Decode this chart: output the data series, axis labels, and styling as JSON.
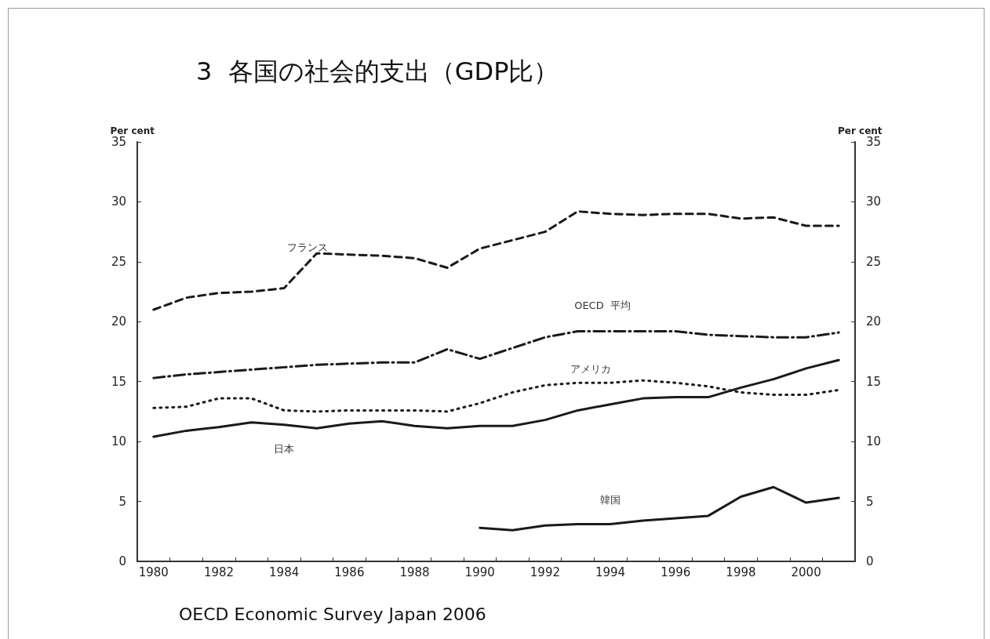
{
  "chart_data": {
    "type": "line",
    "title": "3  各国の社会的支出（GDP比）",
    "categories": [
      "1980",
      null,
      "1982",
      null,
      "1984",
      null,
      "1986",
      null,
      "1988",
      null,
      "1990",
      null,
      "1992",
      null,
      "1994",
      null,
      "1996",
      null,
      "1998",
      null,
      "2000",
      null
    ],
    "ylabel": "Per cent",
    "y2label": "Per cent",
    "ylim": [
      0,
      35
    ],
    "yticks": [
      0,
      5,
      10,
      15,
      20,
      25,
      30,
      35
    ],
    "y2lim": [
      0,
      35
    ],
    "y2ticks": [
      0,
      5,
      10,
      15,
      20,
      25,
      30,
      35
    ],
    "series": [
      {
        "name": "フランス",
        "color": "#1a1a1a",
        "line_style": "dashed",
        "values": [
          21.0,
          22.0,
          22.4,
          22.5,
          22.8,
          25.7,
          25.6,
          25.5,
          25.3,
          24.5,
          26.1,
          26.8,
          27.5,
          29.2,
          29.0,
          28.9,
          29.0,
          29.0,
          28.6,
          28.7,
          28.0,
          28.0
        ]
      },
      {
        "name": "OECD  平均",
        "color": "#1a1a1a",
        "line_style": "dashdot",
        "values": [
          15.3,
          15.6,
          15.8,
          16.0,
          16.2,
          16.4,
          16.5,
          16.6,
          16.6,
          17.7,
          16.9,
          17.8,
          18.7,
          19.2,
          19.2,
          19.2,
          19.2,
          18.9,
          18.8,
          18.7,
          18.7,
          19.1
        ]
      },
      {
        "name": "アメリカ",
        "color": "#1a1a1a",
        "line_style": "dotted",
        "values": [
          12.8,
          12.9,
          13.6,
          13.6,
          12.6,
          12.5,
          12.6,
          12.6,
          12.6,
          12.5,
          13.2,
          14.1,
          14.7,
          14.9,
          14.9,
          15.1,
          14.9,
          14.6,
          14.1,
          13.9,
          13.9,
          14.3
        ]
      },
      {
        "name": "日本",
        "color": "#1a1a1a",
        "line_style": "solid",
        "values": [
          10.4,
          10.9,
          11.2,
          11.6,
          11.4,
          11.1,
          11.5,
          11.7,
          11.3,
          11.1,
          11.3,
          11.3,
          11.8,
          12.6,
          13.1,
          13.6,
          13.7,
          13.7,
          14.5,
          15.2,
          16.1,
          16.8
        ]
      },
      {
        "name": "韓国",
        "color": "#1a1a1a",
        "line_style": "solid",
        "values": [
          null,
          null,
          null,
          null,
          null,
          null,
          null,
          null,
          null,
          null,
          2.8,
          2.6,
          3.0,
          3.1,
          3.1,
          3.4,
          3.6,
          3.8,
          5.4,
          6.2,
          4.9,
          5.3
        ]
      }
    ],
    "annotations": [
      "OECD Economic Survey Japan 2006"
    ]
  }
}
